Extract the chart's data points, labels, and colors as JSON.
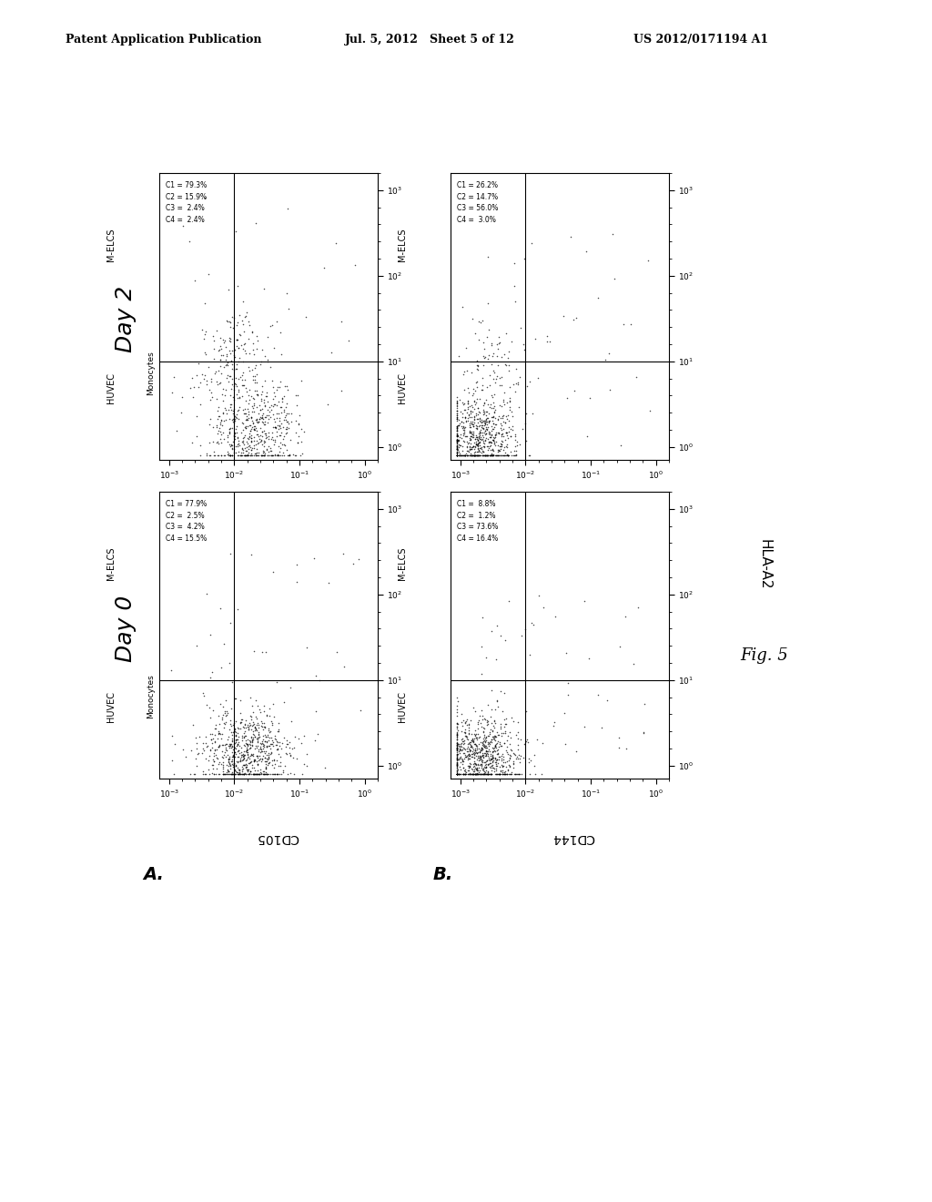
{
  "header_left": "Patent Application Publication",
  "header_mid": "Jul. 5, 2012   Sheet 5 of 12",
  "header_right": "US 2012/0171194 A1",
  "fig_label": "Fig. 5",
  "day0_label": "Day 0",
  "day2_label": "Day 2",
  "row_A_label": "A.",
  "row_B_label": "B.",
  "xaxis_A": "CD105",
  "xaxis_B": "CD144",
  "yaxis_right": "HLA-A2",
  "stats_texts": [
    "C1 = 77.9%\nC2 =  2.5%\nC3 =  4.2%\nC4 = 15.5%",
    "C1 = 79.3%\nC2 = 15.9%\nC3 =  2.4%\nC4 =  2.4%",
    "C1 =  8.8%\nC2 =  1.2%\nC3 = 73.6%\nC4 = 16.4%",
    "C1 = 26.2%\nC2 = 14.7%\nC3 = 56.0%\nC4 =  3.0%"
  ],
  "background_color": "#ffffff"
}
